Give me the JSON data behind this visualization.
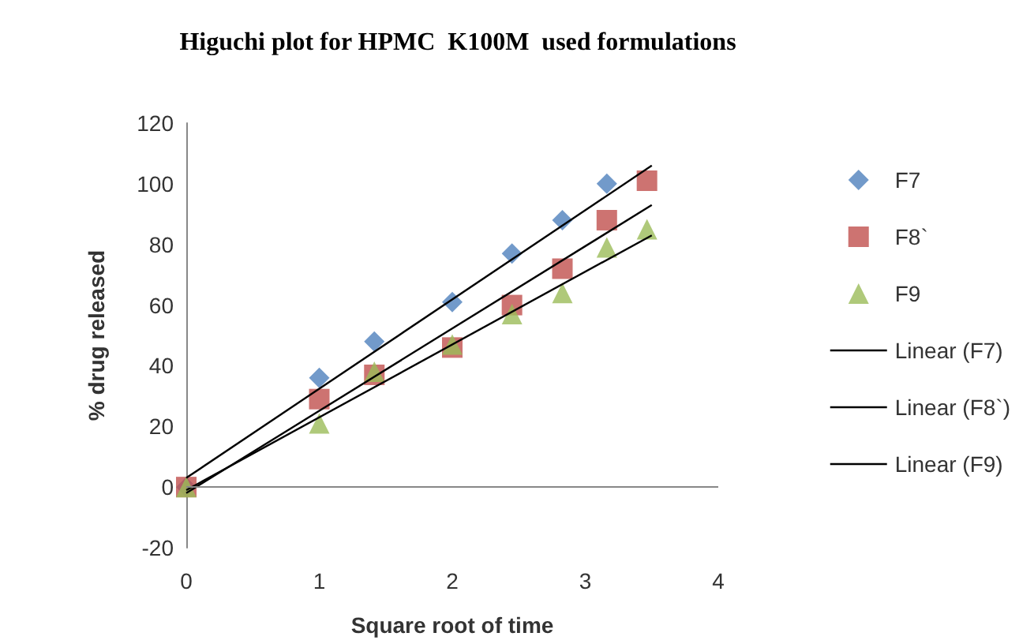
{
  "chart_data": {
    "type": "scatter",
    "title": "Higuchi plot for HPMC  K100M  used formulations",
    "xlabel": "Square root of time",
    "ylabel": "% drug released",
    "xlim": [
      0,
      4
    ],
    "xticks": [
      0,
      1,
      2,
      3,
      4
    ],
    "ylim": [
      -20,
      120
    ],
    "yticks": [
      -20,
      0,
      20,
      40,
      60,
      80,
      100,
      120
    ],
    "grid": false,
    "legend": "right",
    "ref_lines": [
      {
        "axis": "y",
        "value": 0,
        "color": "#888888"
      }
    ],
    "series": [
      {
        "name": "F7",
        "color": "#4f81bd",
        "marker": "diamond",
        "x": [
          0,
          1,
          1.414,
          2,
          2.449,
          2.828,
          3.162
        ],
        "values": [
          0,
          36,
          48,
          61,
          77,
          88,
          100
        ]
      },
      {
        "name": "F8`",
        "color": "#c0504d",
        "marker": "square",
        "x": [
          0,
          1,
          1.414,
          2,
          2.449,
          2.828,
          3.162,
          3.464
        ],
        "values": [
          0,
          29,
          37,
          46,
          60,
          72,
          88,
          101
        ]
      },
      {
        "name": "F9",
        "color": "#9bbb59",
        "marker": "triangle",
        "x": [
          0,
          1,
          1.414,
          2,
          2.449,
          2.828,
          3.162,
          3.464
        ],
        "values": [
          0,
          21,
          38,
          47,
          57,
          64,
          79,
          85
        ]
      },
      {
        "name": "Linear (F7)",
        "type": "line",
        "color": "#000000",
        "marker": "none",
        "x": [
          0,
          3.5
        ],
        "values": [
          3,
          106
        ]
      },
      {
        "name": "Linear (F8`)",
        "type": "line",
        "color": "#000000",
        "marker": "none",
        "x": [
          0,
          3.5
        ],
        "values": [
          -2,
          93
        ]
      },
      {
        "name": "Linear (F9)",
        "type": "line",
        "color": "#000000",
        "marker": "none",
        "x": [
          0,
          3.5
        ],
        "values": [
          -1,
          83
        ]
      }
    ]
  }
}
